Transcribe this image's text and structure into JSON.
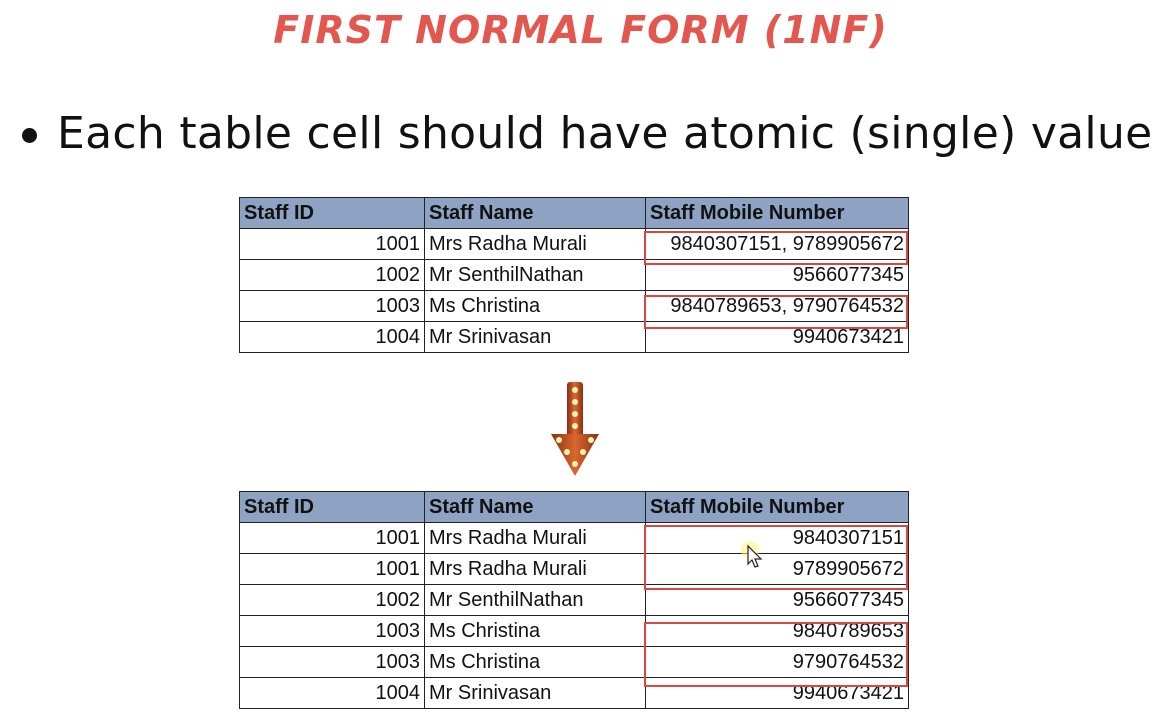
{
  "title": "FIRST NORMAL FORM (1NF)",
  "bullet": "Each table cell should have atomic (single) value",
  "headers": {
    "id": "Staff ID",
    "name": "Staff Name",
    "mobile": "Staff Mobile Number"
  },
  "before_rows": [
    {
      "id": "1001",
      "name": "Mrs Radha Murali",
      "mobile": "9840307151, 9789905672"
    },
    {
      "id": "1002",
      "name": "Mr SenthilNathan",
      "mobile": "9566077345"
    },
    {
      "id": "1003",
      "name": "Ms Christina",
      "mobile": "9840789653, 9790764532"
    },
    {
      "id": "1004",
      "name": "Mr Srinivasan",
      "mobile": "9940673421"
    }
  ],
  "after_rows": [
    {
      "id": "1001",
      "name": "Mrs Radha Murali",
      "mobile": "9840307151"
    },
    {
      "id": "1001",
      "name": "Mrs Radha Murali",
      "mobile": "9789905672"
    },
    {
      "id": "1002",
      "name": "Mr SenthilNathan",
      "mobile": "9566077345"
    },
    {
      "id": "1003",
      "name": "Ms Christina",
      "mobile": "9840789653"
    },
    {
      "id": "1003",
      "name": "Ms Christina",
      "mobile": "9790764532"
    },
    {
      "id": "1004",
      "name": "Mr Srinivasan",
      "mobile": "9940673421"
    }
  ],
  "colors": {
    "title": "#e3574f",
    "header_bg": "#8ea3c3",
    "highlight_border": "#d9473d",
    "arrow": "#c8502a"
  },
  "icons": {
    "arrow": "down-arrow-icon",
    "cursor": "mouse-pointer-icon"
  }
}
